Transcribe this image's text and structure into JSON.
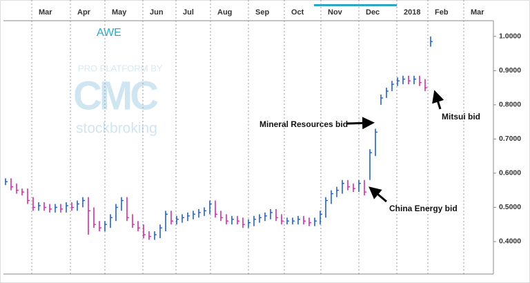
{
  "chart_data": {
    "type": "hlc",
    "title": "AWE",
    "watermark": [
      "PRO PLATFORM BY",
      "CMC",
      "stockbroking"
    ],
    "up_color": "#1f5fd6",
    "down_color": "#d62ca0",
    "high": [
      0.585,
      0.585,
      0.57,
      0.555,
      0.555,
      0.53,
      0.515,
      0.515,
      0.51,
      0.51,
      0.51,
      0.515,
      0.515,
      0.52,
      0.53,
      0.53,
      0.5,
      0.46,
      0.46,
      0.48,
      0.51,
      0.53,
      0.53,
      0.48,
      0.46,
      0.45,
      0.43,
      0.43,
      0.45,
      0.49,
      0.49,
      0.475,
      0.48,
      0.485,
      0.49,
      0.495,
      0.5,
      0.52,
      0.52,
      0.49,
      0.48,
      0.475,
      0.475,
      0.47,
      0.465,
      0.475,
      0.48,
      0.485,
      0.495,
      0.495,
      0.48,
      0.47,
      0.47,
      0.475,
      0.475,
      0.47,
      0.47,
      0.49,
      0.53,
      0.55,
      0.56,
      0.58,
      0.58,
      0.57,
      0.58,
      0.58,
      0.67,
      0.73,
      0.83,
      0.85,
      0.87,
      0.88,
      0.885,
      0.885,
      0.885,
      0.885,
      0.875,
      1.0
    ],
    "low": [
      0.565,
      0.55,
      0.54,
      0.535,
      0.51,
      0.49,
      0.49,
      0.49,
      0.485,
      0.485,
      0.485,
      0.485,
      0.49,
      0.49,
      0.5,
      0.42,
      0.44,
      0.43,
      0.43,
      0.44,
      0.46,
      0.49,
      0.46,
      0.44,
      0.43,
      0.41,
      0.405,
      0.405,
      0.41,
      0.43,
      0.45,
      0.45,
      0.455,
      0.46,
      0.465,
      0.47,
      0.475,
      0.48,
      0.47,
      0.46,
      0.45,
      0.45,
      0.45,
      0.44,
      0.44,
      0.445,
      0.455,
      0.46,
      0.465,
      0.46,
      0.45,
      0.45,
      0.45,
      0.45,
      0.45,
      0.445,
      0.445,
      0.45,
      0.47,
      0.51,
      0.53,
      0.54,
      0.55,
      0.545,
      0.545,
      0.535,
      0.58,
      0.65,
      0.8,
      0.82,
      0.84,
      0.855,
      0.86,
      0.86,
      0.86,
      0.855,
      0.84,
      0.97
    ],
    "close": [
      0.575,
      0.56,
      0.55,
      0.545,
      0.52,
      0.5,
      0.505,
      0.5,
      0.495,
      0.5,
      0.495,
      0.505,
      0.5,
      0.51,
      0.52,
      0.49,
      0.45,
      0.44,
      0.45,
      0.47,
      0.5,
      0.52,
      0.47,
      0.45,
      0.44,
      0.42,
      0.415,
      0.42,
      0.44,
      0.48,
      0.46,
      0.465,
      0.47,
      0.475,
      0.48,
      0.485,
      0.49,
      0.51,
      0.48,
      0.47,
      0.46,
      0.465,
      0.46,
      0.45,
      0.455,
      0.465,
      0.47,
      0.475,
      0.485,
      0.47,
      0.46,
      0.46,
      0.46,
      0.465,
      0.46,
      0.455,
      0.46,
      0.48,
      0.52,
      0.54,
      0.55,
      0.57,
      0.56,
      0.555,
      0.57,
      0.545,
      0.66,
      0.72,
      0.82,
      0.84,
      0.86,
      0.87,
      0.875,
      0.87,
      0.875,
      0.865,
      0.85,
      0.985
    ],
    "xlim": [
      -0.375,
      88.375
    ],
    "xticks": [
      {
        "value": 4.75,
        "label": "Mar"
      },
      {
        "value": 11.75,
        "label": "Apr"
      },
      {
        "value": 18,
        "label": "May"
      },
      {
        "value": 24.875,
        "label": "Jun"
      },
      {
        "value": 30.875,
        "label": "Jul"
      },
      {
        "value": 37.125,
        "label": "Aug"
      },
      {
        "value": 44,
        "label": "Sep"
      },
      {
        "value": 50.5,
        "label": "Oct"
      },
      {
        "value": 57.125,
        "label": "Nov"
      },
      {
        "value": 64,
        "label": "Dec"
      },
      {
        "value": 70.875,
        "label": "2018"
      },
      {
        "value": 76.5,
        "label": "Feb"
      },
      {
        "value": 83,
        "label": "Mar"
      }
    ],
    "ylim": [
      0.305,
      1.046
    ],
    "yticks": [
      {
        "value": 0.4,
        "label": "0.4000"
      },
      {
        "value": 0.5,
        "label": "0.5000"
      },
      {
        "value": 0.6,
        "label": "0.6000"
      },
      {
        "value": 0.7,
        "label": "0.7000"
      },
      {
        "value": 0.8,
        "label": "0.8000"
      },
      {
        "value": 0.9,
        "label": "0.9000"
      },
      {
        "value": 1.0,
        "label": "1.0000"
      }
    ],
    "grid": true,
    "annotations": [
      "Mineral Resources bid",
      "China Energy bid",
      "Mitsui bid"
    ]
  }
}
